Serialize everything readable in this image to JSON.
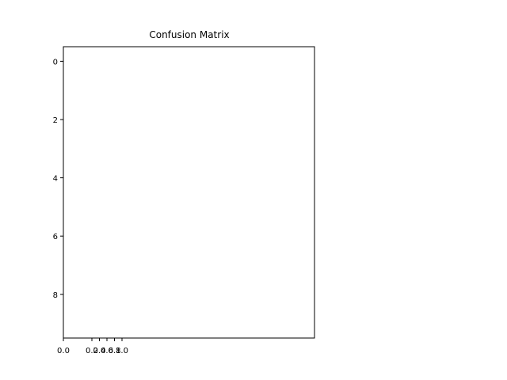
{
  "chart_data": {
    "type": "heatmap",
    "title": "Confusion Matrix",
    "xlabel": "",
    "ylabel": "",
    "ylim": [
      9.5,
      -0.5
    ],
    "y_ticks": [
      "0",
      "2",
      "4",
      "6",
      "8"
    ],
    "x_ticks": [
      "0.0",
      "0.2",
      "0.4",
      "0.6",
      "0.8",
      "1.0"
    ],
    "values": [],
    "grid": false,
    "colors": {
      "background": "#ffffff",
      "frame": "#000000",
      "text": "#000000"
    }
  }
}
